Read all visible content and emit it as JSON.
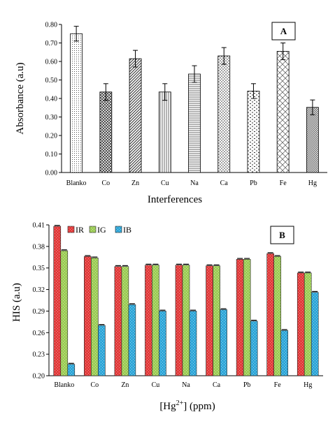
{
  "chart_data": [
    {
      "type": "bar",
      "panel_label": "A",
      "categories": [
        "Blanko",
        "Co",
        "Zn",
        "Cu",
        "Na",
        "Ca",
        "Pb",
        "Fe",
        "Hg"
      ],
      "values": [
        0.75,
        0.435,
        0.615,
        0.435,
        0.532,
        0.63,
        0.44,
        0.655,
        0.352
      ],
      "errors": [
        0.04,
        0.045,
        0.045,
        0.045,
        0.045,
        0.045,
        0.04,
        0.045,
        0.04
      ],
      "patterns": [
        "vdots",
        "cross-hatch",
        "diag-right",
        "vlines",
        "hlines",
        "dots",
        "dashes",
        "diamond",
        "checker"
      ],
      "xlabel": "Interferences",
      "ylabel": "Absorbance (a.u)",
      "ylim": [
        0,
        0.8
      ],
      "yticks": [
        "0.00",
        "0.10",
        "0.20",
        "0.30",
        "0.40",
        "0.50",
        "0.60",
        "0.70",
        "0.80"
      ],
      "grid": false,
      "error_bars": true
    },
    {
      "type": "bar",
      "panel_label": "B",
      "categories": [
        "Blanko",
        "Co",
        "Zn",
        "Cu",
        "Na",
        "Ca",
        "Pb",
        "Fe",
        "Hg"
      ],
      "series": [
        {
          "name": "IR",
          "color": "#e23b3b",
          "values": [
            0.408,
            0.366,
            0.352,
            0.354,
            0.354,
            0.353,
            0.362,
            0.37,
            0.343
          ]
        },
        {
          "name": "IG",
          "color": "#9ccc55",
          "values": [
            0.374,
            0.364,
            0.352,
            0.354,
            0.354,
            0.353,
            0.362,
            0.366,
            0.343
          ]
        },
        {
          "name": "IB",
          "color": "#2ea6d8",
          "values": [
            0.216,
            0.27,
            0.299,
            0.29,
            0.29,
            0.292,
            0.276,
            0.263,
            0.316
          ]
        }
      ],
      "xlabel": "[Hg2+] (ppm)",
      "xlabel_parts": {
        "pre": "[Hg",
        "sup": "2+",
        "post": "] (ppm)"
      },
      "ylabel": "HIS (a.u)",
      "ylim": [
        0.2,
        0.41
      ],
      "yticks": [
        "0.20",
        "0.23",
        "0.26",
        "0.29",
        "0.32",
        "0.35",
        "0.38",
        "0.41"
      ],
      "legend_position": "top-left",
      "grid": false
    }
  ]
}
